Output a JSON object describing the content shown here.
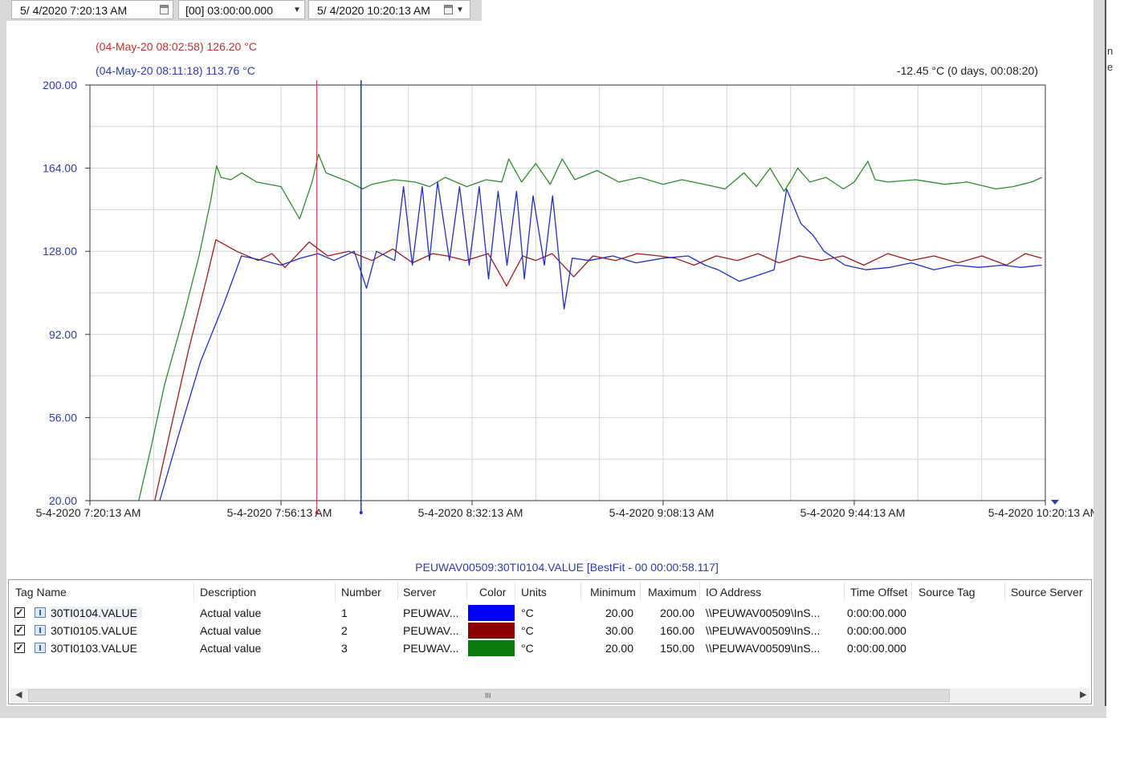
{
  "toolbar": {
    "start_time": "5/  4/2020   7:20:13 AM",
    "duration": "[00] 03:00:00.000",
    "end_time": "5/  4/2020 10:20:13 AM"
  },
  "cursors": {
    "red_label": "(04-May-20 08:02:58) 126.20 °C",
    "blue_label": "(04-May-20 08:11:18) 113.76 °C",
    "delta_label": "-12.45 °C (0 days, 00:08:20)",
    "red_time": "5-4-2020 8:02:58",
    "blue_time": "5-4-2020 8:11:18"
  },
  "footer_title": "PEUWAV00509:30TI0104.VALUE [BestFit - 00 00:00:58.117]",
  "colors": {
    "blue": "#1f2fbf",
    "red": "#9b1a1a",
    "green": "#2e8b2e",
    "axis_blue": "#2a3aa8",
    "grid": "#d4d4d4"
  },
  "legend": {
    "columns": [
      "Tag Name",
      "Description",
      "Number",
      "Server",
      "Color",
      "Units",
      "Minimum",
      "Maximum",
      "IO Address",
      "Time Offset",
      "Source Tag",
      "Source Server"
    ],
    "rows": [
      {
        "tag": "30TI0104.VALUE",
        "description": "Actual value",
        "number": "1",
        "server": "PEUWAV...",
        "color": "#0000ff",
        "units": "°C",
        "min": "20.00",
        "max": "200.00",
        "io": "\\\\PEUWAV00509\\InS...",
        "offset": "0:00:00.000"
      },
      {
        "tag": "30TI0105.VALUE",
        "description": "Actual value",
        "number": "2",
        "server": "PEUWAV...",
        "color": "#8b0000",
        "units": "°C",
        "min": "30.00",
        "max": "160.00",
        "io": "\\\\PEUWAV00509\\InS...",
        "offset": "0:00:00.000"
      },
      {
        "tag": "30TI0103.VALUE",
        "description": "Actual value",
        "number": "3",
        "server": "PEUWAV...",
        "color": "#0a7a0a",
        "units": "°C",
        "min": "20.00",
        "max": "150.00",
        "io": "\\\\PEUWAV00509\\InS...",
        "offset": "0:00:00.000"
      }
    ],
    "scroll_grip": "III"
  },
  "chart_data": {
    "type": "line",
    "ylim": [
      20,
      200
    ],
    "y_ticks": [
      "200.00",
      "164.00",
      "128.00",
      "92.00",
      "56.00",
      "20.00"
    ],
    "x_ticks": [
      "5-4-2020 7:20:13 AM",
      "5-4-2020 7:56:13 AM",
      "5-4-2020 8:32:13 AM",
      "5-4-2020 9:08:13 AM",
      "5-4-2020 9:44:13 AM",
      "5-4-2020 10:20:13 AM"
    ],
    "x_range": [
      "5-4-2020 7:20:13",
      "5-4-2020 10:20:13"
    ],
    "grid": true,
    "series": [
      {
        "tag": "30TI0103.VALUE",
        "color": "#2e8b2e",
        "x": [
          "5-4-2020 7:29:25",
          "5-4-2020 7:31:38",
          "5-4-2020 7:34:15",
          "5-4-2020 7:37:53",
          "5-4-2020 7:40:46",
          "5-4-2020 7:42:59",
          "5-4-2020 7:44:04",
          "5-4-2020 7:44:55",
          "5-4-2020 7:46:47",
          "5-4-2020 7:48:48",
          "5-4-2020 7:51:37",
          "5-4-2020 7:56:13",
          "5-4-2020 7:59:44",
          "5-4-2020 8:02:04",
          "5-4-2020 8:03:18",
          "5-4-2020 8:04:41",
          "5-4-2020 8:06:53",
          "5-4-2020 8:09:05",
          "5-4-2020 8:11:34",
          "5-4-2020 8:13:21",
          "5-4-2020 8:17:32",
          "5-4-2020 8:21:27",
          "5-4-2020 8:24:13",
          "5-4-2020 8:27:10",
          "5-4-2020 8:31:12",
          "5-4-2020 8:34:51",
          "5-4-2020 8:37:49",
          "5-4-2020 8:39:08",
          "5-4-2020 8:41:33",
          "5-4-2020 8:44:13",
          "5-4-2020 8:46:56",
          "5-4-2020 8:49:12",
          "5-4-2020 8:51:35",
          "5-4-2020 8:55:45",
          "5-4-2020 8:59:53",
          "5-4-2020 9:03:51",
          "5-4-2020 9:08:13",
          "5-4-2020 9:11:44",
          "5-4-2020 9:15:58",
          "5-4-2020 9:19:53",
          "5-4-2020 9:23:27",
          "5-4-2020 9:25:47",
          "5-4-2020 9:28:21",
          "5-4-2020 9:31:00",
          "5-4-2020 9:32:38",
          "5-4-2020 9:33:34",
          "5-4-2020 9:35:52",
          "5-4-2020 9:38:53",
          "5-4-2020 9:42:11",
          "5-4-2020 9:44:13",
          "5-4-2020 9:46:47",
          "5-4-2020 9:48:10",
          "5-4-2020 9:50:36",
          "5-4-2020 9:55:46",
          "5-4-2020 10:01:14",
          "5-4-2020 10:05:31",
          "5-4-2020 10:10:53",
          "5-4-2020 10:14:09",
          "5-4-2020 10:17:38",
          "5-4-2020 10:19:33"
        ],
        "values": [
          20.0,
          42.0,
          70.0,
          100.0,
          126.0,
          150.0,
          165.0,
          160.0,
          159.0,
          162.0,
          158.0,
          156.0,
          142.0,
          158.0,
          170.0,
          162.0,
          160.0,
          158.0,
          155.0,
          157.0,
          159.0,
          158.0,
          156.0,
          160.0,
          156.0,
          159.0,
          158.0,
          168.0,
          158.0,
          166.0,
          157.0,
          168.0,
          159.0,
          163.0,
          158.0,
          160.0,
          157.0,
          159.0,
          157.0,
          155.0,
          162.0,
          156.0,
          164.0,
          154.0,
          160.0,
          164.0,
          158.0,
          160.0,
          155.0,
          158.0,
          167.0,
          159.0,
          158.0,
          159.0,
          157.0,
          158.0,
          155.0,
          156.0,
          158.0,
          160.0
        ]
      },
      {
        "tag": "30TI0105.VALUE",
        "color": "#9b1a1a",
        "x": [
          "5-4-2020 7:32:26",
          "5-4-2020 7:35:20",
          "5-4-2020 7:38:47",
          "5-4-2020 7:42:04",
          "5-4-2020 7:43:57",
          "5-4-2020 7:47:51",
          "5-4-2020 7:51:56",
          "5-4-2020 7:54:31",
          "5-4-2020 7:56:58",
          "5-4-2020 8:01:32",
          "5-4-2020 8:05:00",
          "5-4-2020 8:09:00",
          "5-4-2020 8:13:21",
          "5-4-2020 8:17:17",
          "5-4-2020 8:21:00",
          "5-4-2020 8:24:47",
          "5-4-2020 8:27:32",
          "5-4-2020 8:31:01",
          "5-4-2020 8:35:16",
          "5-4-2020 8:38:43",
          "5-4-2020 8:41:45",
          "5-4-2020 8:44:13",
          "5-4-2020 8:47:18",
          "5-4-2020 8:51:23",
          "5-4-2020 8:55:00",
          "5-4-2020 8:59:15",
          "5-4-2020 9:03:20",
          "5-4-2020 9:07:27",
          "5-4-2020 9:10:27",
          "5-4-2020 9:14:02",
          "5-4-2020 9:18:13",
          "5-4-2020 9:22:12",
          "5-4-2020 9:26:05",
          "5-4-2020 9:30:03",
          "5-4-2020 9:33:56",
          "5-4-2020 9:38:01",
          "5-4-2020 9:42:06",
          "5-4-2020 9:46:01",
          "5-4-2020 9:50:32",
          "5-4-2020 9:54:56",
          "5-4-2020 9:59:15",
          "5-4-2020 10:03:45",
          "5-4-2020 10:08:15",
          "5-4-2020 10:12:53",
          "5-4-2020 10:16:28",
          "5-4-2020 10:19:31"
        ],
        "values": [
          20.0,
          50.0,
          85.0,
          115.0,
          133.0,
          128.0,
          124.0,
          127.0,
          121.0,
          132.0,
          126.0,
          128.0,
          124.0,
          129.0,
          123.0,
          127.0,
          126.0,
          124.0,
          127.0,
          113.0,
          126.0,
          124.0,
          127.0,
          117.0,
          126.0,
          124.0,
          127.0,
          126.0,
          125.0,
          122.0,
          126.0,
          124.0,
          127.0,
          123.0,
          126.0,
          124.0,
          126.0,
          122.0,
          127.0,
          124.0,
          126.0,
          123.0,
          126.0,
          122.0,
          127.0,
          125.0
        ]
      },
      {
        "tag": "30TI0104.VALUE",
        "color": "#1f2fbf",
        "x": [
          "5-4-2020 7:33:23",
          "5-4-2020 7:37:08",
          "5-4-2020 7:41:02",
          "5-4-2020 7:45:24",
          "5-4-2020 7:48:46",
          "5-4-2020 7:52:53",
          "5-4-2020 7:56:13",
          "5-4-2020 7:59:55",
          "5-4-2020 8:03:11",
          "5-4-2020 8:06:14",
          "5-4-2020 8:10:00",
          "5-4-2020 8:12:20",
          "5-4-2020 8:14:11",
          "5-4-2020 8:17:38",
          "5-4-2020 8:19:18",
          "5-4-2020 8:20:58",
          "5-4-2020 8:22:49",
          "5-4-2020 8:24:11",
          "5-4-2020 8:25:44",
          "5-4-2020 8:27:57",
          "5-4-2020 8:29:51",
          "5-4-2020 8:31:40",
          "5-4-2020 8:33:34",
          "5-4-2020 8:35:19",
          "5-4-2020 8:37:07",
          "5-4-2020 8:38:48",
          "5-4-2020 8:40:36",
          "5-4-2020 8:42:04",
          "5-4-2020 8:43:43",
          "5-4-2020 8:45:50",
          "5-4-2020 8:47:23",
          "5-4-2020 8:49:33",
          "5-4-2020 8:51:05",
          "5-4-2020 8:54:19",
          "5-4-2020 8:58:45",
          "5-4-2020 9:03:06",
          "5-4-2020 9:08:13",
          "5-4-2020 9:12:55",
          "5-4-2020 9:16:07",
          "5-4-2020 9:18:34",
          "5-4-2020 9:22:32",
          "5-4-2020 9:25:18",
          "5-4-2020 9:29:07",
          "5-4-2020 9:31:29",
          "5-4-2020 9:34:10",
          "5-4-2020 9:36:27",
          "5-4-2020 9:38:31",
          "5-4-2020 9:41:10",
          "5-4-2020 9:42:28",
          "5-4-2020 9:46:26",
          "5-4-2020 9:50:54",
          "5-4-2020 9:54:58",
          "5-4-2020 9:59:13",
          "5-4-2020 10:03:23",
          "5-4-2020 10:07:39",
          "5-4-2020 10:12:10",
          "5-4-2020 10:15:35",
          "5-4-2020 10:19:31"
        ],
        "values": [
          20.0,
          50.0,
          80.0,
          105.0,
          126.0,
          124.0,
          122.0,
          125.0,
          127.0,
          124.0,
          128.0,
          112.0,
          128.0,
          124.0,
          156.0,
          122.0,
          156.0,
          124.0,
          158.0,
          124.0,
          156.0,
          122.0,
          156.0,
          116.0,
          154.0,
          122.0,
          154.0,
          116.0,
          152.0,
          122.0,
          152.0,
          103.0,
          125.0,
          124.0,
          126.0,
          123.0,
          125.0,
          126.0,
          122.0,
          120.0,
          115.0,
          117.0,
          120.0,
          155.0,
          140.0,
          135.0,
          128.0,
          124.0,
          122.0,
          120.0,
          121.0,
          123.0,
          120.0,
          122.0,
          121.0,
          122.0,
          121.0,
          122.0
        ]
      }
    ]
  }
}
